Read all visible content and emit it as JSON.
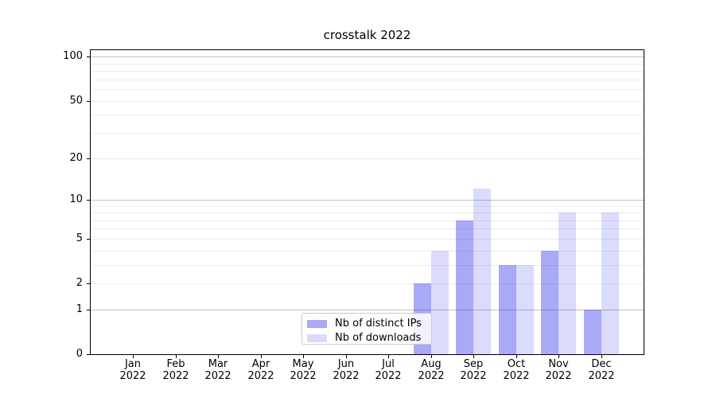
{
  "chart_data": {
    "type": "bar",
    "title": "crosstalk 2022",
    "y_scale": "log1p",
    "ylim": [
      0,
      111
    ],
    "ytick_values": [
      0,
      1,
      2,
      5,
      10,
      20,
      50,
      100
    ],
    "y_major_gridlines": [
      1,
      10,
      100
    ],
    "y_minor_gridlines": [
      2,
      3,
      4,
      5,
      6,
      7,
      8,
      9,
      20,
      30,
      40,
      50,
      60,
      70,
      80,
      90
    ],
    "categories": [
      "Jan",
      "Feb",
      "Mar",
      "Apr",
      "May",
      "Jun",
      "Jul",
      "Aug",
      "Sep",
      "Oct",
      "Nov",
      "Dec"
    ],
    "year_label": "2022",
    "series": [
      {
        "name": "Nb of distinct IPs",
        "color": "rgba(30,30,235,0.38)",
        "values": [
          0,
          0,
          0,
          0,
          0,
          0,
          0,
          2,
          7,
          3,
          4,
          1
        ]
      },
      {
        "name": "Nb of downloads",
        "color": "rgba(30,30,235,0.16)",
        "values": [
          0,
          0,
          0,
          0,
          0,
          0,
          0,
          4,
          12,
          3,
          8,
          8
        ]
      }
    ],
    "legend_position": "bottom-center",
    "grid_on": true,
    "colors": {
      "grid_major": "#c2c2c2",
      "grid_minor": "#ececec",
      "axis": "#000000",
      "background": "#ffffff",
      "legend_border": "#c9c9c9"
    }
  }
}
